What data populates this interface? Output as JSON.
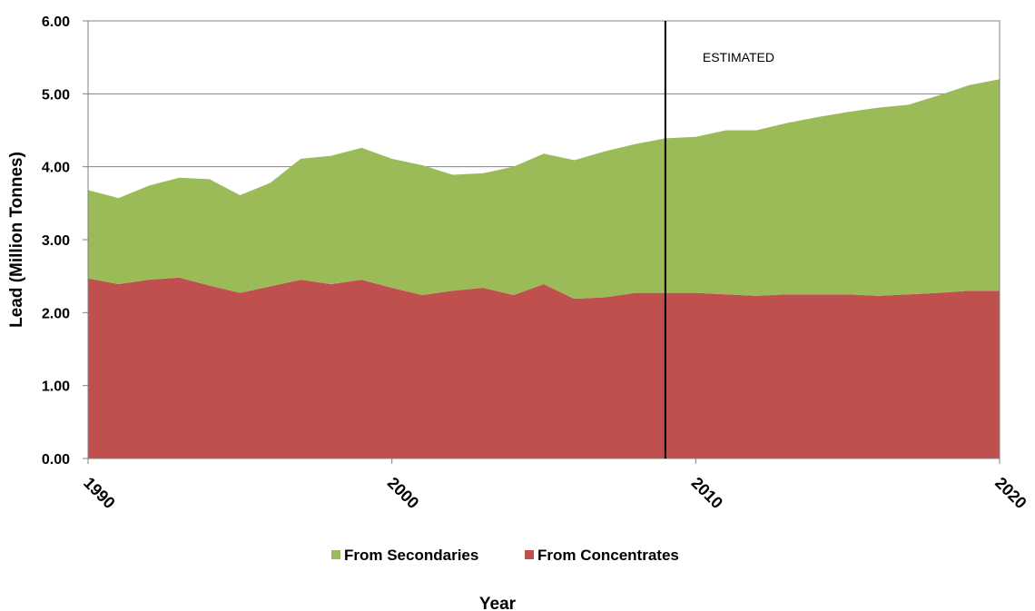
{
  "chart_data": {
    "type": "area",
    "stacked": true,
    "xlabel": "Year",
    "ylabel": "Lead (Million Tonnes)",
    "ylim": [
      0,
      6
    ],
    "xlim": [
      1990,
      2020
    ],
    "y_ticks": [
      "0.00",
      "1.00",
      "2.00",
      "3.00",
      "4.00",
      "5.00",
      "6.00"
    ],
    "x_ticks": [
      "1990",
      "2000",
      "2010",
      "2020"
    ],
    "grid": "horizontal",
    "legend_position": "bottom",
    "annotation": {
      "text": "ESTIMATED",
      "x": 2009
    },
    "x": [
      1990,
      1991,
      1992,
      1993,
      1994,
      1995,
      1996,
      1997,
      1998,
      1999,
      2000,
      2001,
      2002,
      2003,
      2004,
      2005,
      2006,
      2007,
      2008,
      2009,
      2010,
      2011,
      2012,
      2013,
      2014,
      2015,
      2016,
      2017,
      2018,
      2019,
      2020
    ],
    "series": [
      {
        "name": "From Concentrates",
        "color": "#c0504d",
        "values": [
          2.47,
          2.39,
          2.45,
          2.48,
          2.37,
          2.27,
          2.36,
          2.45,
          2.39,
          2.45,
          2.34,
          2.24,
          2.3,
          2.34,
          2.24,
          2.39,
          2.19,
          2.21,
          2.27,
          2.27,
          2.27,
          2.25,
          2.23,
          2.25,
          2.25,
          2.25,
          2.23,
          2.25,
          2.27,
          2.3,
          2.3
        ]
      },
      {
        "name": "From Secondaries",
        "color": "#9bbb59",
        "values": [
          1.21,
          1.18,
          1.29,
          1.37,
          1.46,
          1.34,
          1.42,
          1.66,
          1.76,
          1.81,
          1.77,
          1.78,
          1.59,
          1.57,
          1.76,
          1.79,
          1.9,
          2.0,
          2.04,
          2.12,
          2.14,
          2.25,
          2.27,
          2.35,
          2.43,
          2.5,
          2.58,
          2.6,
          2.71,
          2.82,
          2.9
        ]
      }
    ]
  }
}
